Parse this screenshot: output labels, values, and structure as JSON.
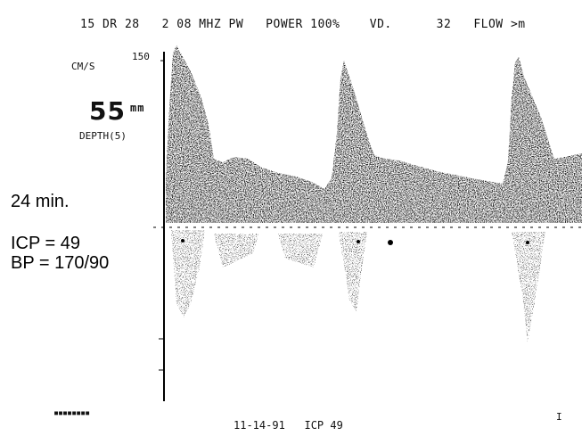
{
  "monitor": {
    "header_text": "15 DR 28   2 08 MHZ PW   POWER 100%    VD.      32   FLOW >m",
    "units_label": "CM/S",
    "scale_max": "150",
    "depth_value": "55",
    "depth_unit_mark": "mm",
    "depth_label": "DEPTH(5)",
    "time_label": "24 min.",
    "icp_label": "ICP = 49",
    "bp_label": "BP = 170/90",
    "footer_marker": "▪▪▪▪▪▪▪▪",
    "footer_text": "11-14-91   ICP 49",
    "footer_tick": "I"
  },
  "spectrum": {
    "waveform": "cerebral blood flow velocity doppler spectrum",
    "beats": 3,
    "waveform_color": "#000000"
  }
}
